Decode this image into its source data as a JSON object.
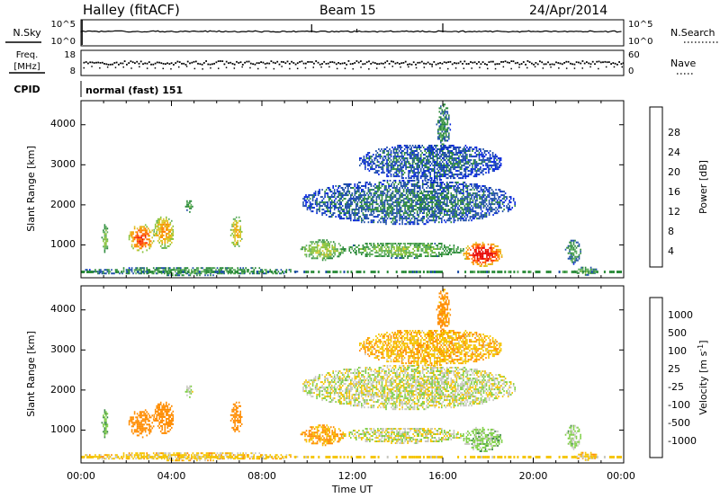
{
  "header": {
    "station": "Halley (fitACF)",
    "beam": "Beam 15",
    "date": "24/Apr/2014"
  },
  "noise_panel": {
    "left_label": "N.Sky",
    "right_label": "N.Search",
    "left_ticks": [
      "10^5",
      "10^0"
    ],
    "right_ticks": [
      "10^5",
      "10^0"
    ]
  },
  "freq_panel": {
    "left_label_line1": "Freq.",
    "left_label_line2": "[MHz]",
    "right_label": "Nave",
    "left_ticks": [
      "18",
      "8"
    ],
    "right_ticks": [
      "60",
      "0"
    ]
  },
  "cpid": {
    "label": "CPID",
    "mode": "normal (fast) 151"
  },
  "power_panel": {
    "ylabel": "Slant Range [km]",
    "yticks": [
      "4000",
      "3000",
      "2000",
      "1000"
    ],
    "colorbar_label": "Power [dB]",
    "colorbar_ticks": [
      "28",
      "24",
      "20",
      "16",
      "12",
      "8",
      "4"
    ],
    "colors": [
      "#0022dd",
      "#1f4fa8",
      "#2b8a3a",
      "#5fae5f",
      "#88c23a",
      "#d9c72a",
      "#f5a000",
      "#ff7a00",
      "#ff3a00",
      "#e60000"
    ]
  },
  "velocity_panel": {
    "ylabel": "Slant Range [km]",
    "yticks": [
      "4000",
      "3000",
      "2000",
      "1000"
    ],
    "colorbar_label": "Velocity [m s",
    "colorbar_label_sup": "-1",
    "colorbar_label_end": "]",
    "colorbar_ticks": [
      "1000",
      "500",
      "100",
      "25",
      "-25",
      "-100",
      "-500",
      "-1000"
    ],
    "colors": [
      "#1d39c4",
      "#2e6b8a",
      "#3a8a44",
      "#7ecf45",
      "#c8c8c0",
      "#f5c400",
      "#ff8c00",
      "#ff5000",
      "#e60000"
    ]
  },
  "x_axis": {
    "label": "Time UT",
    "ticks": [
      "00:00",
      "04:00",
      "08:00",
      "12:00",
      "16:00",
      "20:00",
      "00:00"
    ]
  },
  "chart_data": {
    "type": "heatmap",
    "title": "Halley (fitACF)  Beam 15  24/Apr/2014",
    "xlabel": "Time UT",
    "ylabel": "Slant Range [km]",
    "xlim": [
      0,
      24
    ],
    "ylim": [
      180,
      4600
    ],
    "power_clim": [
      0,
      32
    ],
    "velocity_clim": [
      -1200,
      1200
    ],
    "blobs": [
      {
        "t0": 0.9,
        "t1": 1.2,
        "r0": 800,
        "r1": 1500,
        "power": 12,
        "velocity": 80
      },
      {
        "t0": 2.1,
        "t1": 3.2,
        "r0": 800,
        "r1": 1500,
        "power": 24,
        "velocity": -300
      },
      {
        "t0": 3.2,
        "t1": 4.1,
        "r0": 900,
        "r1": 1700,
        "power": 20,
        "velocity": -200
      },
      {
        "t0": 4.6,
        "t1": 4.9,
        "r0": 1800,
        "r1": 2100,
        "power": 10,
        "velocity": 30
      },
      {
        "t0": 6.6,
        "t1": 7.1,
        "r0": 900,
        "r1": 1700,
        "power": 18,
        "velocity": -400
      },
      {
        "t0": 0.0,
        "t1": 9.7,
        "r0": 220,
        "r1": 420,
        "power": 9,
        "velocity": -60
      },
      {
        "t0": 9.7,
        "t1": 11.6,
        "r0": 600,
        "r1": 1100,
        "power": 14,
        "velocity": -120
      },
      {
        "t0": 11.6,
        "t1": 16.9,
        "r0": 650,
        "r1": 1050,
        "power": 12,
        "velocity": 0
      },
      {
        "t0": 16.9,
        "t1": 18.6,
        "r0": 450,
        "r1": 1050,
        "power": 28,
        "velocity": 60
      },
      {
        "t0": 9.8,
        "t1": 19.2,
        "r0": 1500,
        "r1": 2600,
        "power": 6,
        "velocity": 0
      },
      {
        "t0": 12.3,
        "t1": 18.6,
        "r0": 2600,
        "r1": 3500,
        "power": 5,
        "velocity": -80
      },
      {
        "t0": 15.7,
        "t1": 16.3,
        "r0": 3400,
        "r1": 4500,
        "power": 8,
        "velocity": -150
      },
      {
        "t0": 21.4,
        "t1": 22.1,
        "r0": 500,
        "r1": 1100,
        "power": 8,
        "velocity": 50
      },
      {
        "t0": 21.8,
        "t1": 22.8,
        "r0": 230,
        "r1": 420,
        "power": 10,
        "velocity": -60
      }
    ]
  }
}
